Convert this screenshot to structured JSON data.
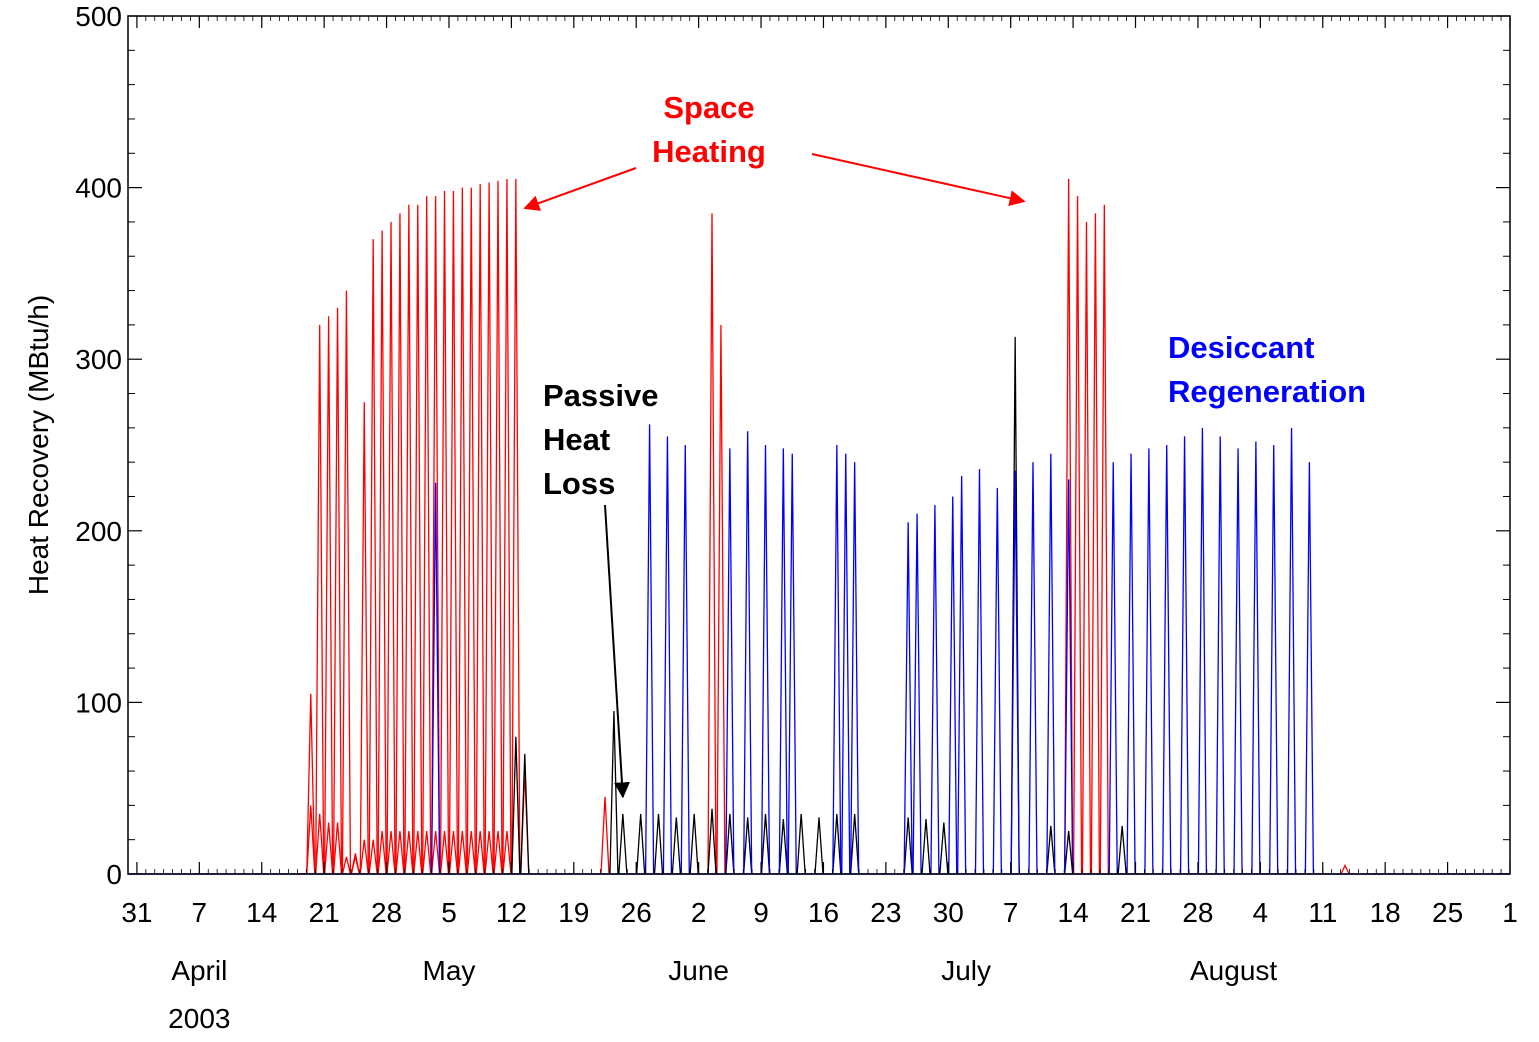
{
  "chart_data": {
    "type": "line",
    "title": "",
    "xlabel": "",
    "ylabel": "Heat Recovery (MBtu/h)",
    "ylim": [
      0,
      500
    ],
    "yticks": [
      0,
      100,
      200,
      300,
      400,
      500
    ],
    "xlim": [
      "2003-03-30",
      "2003-09-01"
    ],
    "x_tick_labels": [
      {
        "date": "2003-03-31",
        "label": "31"
      },
      {
        "date": "2003-04-07",
        "label": "7"
      },
      {
        "date": "2003-04-14",
        "label": "14"
      },
      {
        "date": "2003-04-21",
        "label": "21"
      },
      {
        "date": "2003-04-28",
        "label": "28"
      },
      {
        "date": "2003-05-05",
        "label": "5"
      },
      {
        "date": "2003-05-12",
        "label": "12"
      },
      {
        "date": "2003-05-19",
        "label": "19"
      },
      {
        "date": "2003-05-26",
        "label": "26"
      },
      {
        "date": "2003-06-02",
        "label": "2"
      },
      {
        "date": "2003-06-09",
        "label": "9"
      },
      {
        "date": "2003-06-16",
        "label": "16"
      },
      {
        "date": "2003-06-23",
        "label": "23"
      },
      {
        "date": "2003-06-30",
        "label": "30"
      },
      {
        "date": "2003-07-07",
        "label": "7"
      },
      {
        "date": "2003-07-14",
        "label": "14"
      },
      {
        "date": "2003-07-21",
        "label": "21"
      },
      {
        "date": "2003-07-28",
        "label": "28"
      },
      {
        "date": "2003-08-04",
        "label": "4"
      },
      {
        "date": "2003-08-11",
        "label": "11"
      },
      {
        "date": "2003-08-18",
        "label": "18"
      },
      {
        "date": "2003-08-25",
        "label": "25"
      },
      {
        "date": "2003-09-01",
        "label": "1"
      }
    ],
    "month_labels": [
      {
        "date": "2003-04-07",
        "label": "April"
      },
      {
        "date": "2003-05-05",
        "label": "May"
      },
      {
        "date": "2003-06-02",
        "label": "June"
      },
      {
        "date": "2003-07-02",
        "label": "July"
      },
      {
        "date": "2003-08-01",
        "label": "August"
      }
    ],
    "year_label": {
      "date": "2003-04-07",
      "label": "2003"
    },
    "grid": false,
    "series": [
      {
        "color": "#ff0000",
        "x": [
          "2003-04-18",
          "2003-04-19",
          "2003-04-19",
          "2003-04-20",
          "2003-04-20",
          "2003-04-21",
          "2003-04-21",
          "2003-04-22",
          "2003-04-22",
          "2003-04-23",
          "2003-04-23",
          "2003-04-24",
          "2003-04-24",
          "2003-04-25",
          "2003-04-25",
          "2003-04-26",
          "2003-04-26",
          "2003-04-27",
          "2003-04-27",
          "2003-04-28",
          "2003-04-28",
          "2003-04-29",
          "2003-04-29",
          "2003-04-30",
          "2003-04-30",
          "2003-05-01",
          "2003-05-01",
          "2003-05-02",
          "2003-05-02",
          "2003-05-03",
          "2003-05-03",
          "2003-05-04",
          "2003-05-04",
          "2003-05-05",
          "2003-05-05",
          "2003-05-06",
          "2003-05-06",
          "2003-05-07",
          "2003-05-07",
          "2003-05-08",
          "2003-05-08",
          "2003-05-09",
          "2003-05-09",
          "2003-05-10",
          "2003-05-10",
          "2003-05-11",
          "2003-05-11",
          "2003-05-12",
          "2003-05-13",
          "2003-05-22",
          "2003-06-03",
          "2003-06-04",
          "2003-07-13",
          "2003-07-14",
          "2003-07-15",
          "2003-07-16",
          "2003-07-17",
          "2003-08-13"
        ],
        "y": [
          0,
          105,
          40,
          320,
          35,
          325,
          30,
          330,
          30,
          340,
          10,
          12,
          10,
          275,
          20,
          370,
          20,
          375,
          25,
          380,
          25,
          385,
          25,
          390,
          25,
          390,
          25,
          395,
          25,
          395,
          25,
          398,
          25,
          398,
          25,
          400,
          25,
          400,
          25,
          402,
          25,
          403,
          25,
          404,
          25,
          405,
          25,
          405,
          60,
          45,
          385,
          320,
          405,
          395,
          380,
          385,
          390,
          5
        ]
      },
      {
        "color": "#000000",
        "x": [
          "2003-05-12",
          "2003-05-13",
          "2003-05-23",
          "2003-05-24",
          "2003-05-26",
          "2003-05-28",
          "2003-05-30",
          "2003-06-01",
          "2003-06-03",
          "2003-06-05",
          "2003-06-07",
          "2003-06-09",
          "2003-06-11",
          "2003-06-13",
          "2003-06-15",
          "2003-06-17",
          "2003-06-19",
          "2003-06-25",
          "2003-06-27",
          "2003-06-29",
          "2003-07-07",
          "2003-07-11",
          "2003-07-13",
          "2003-07-19"
        ],
        "y": [
          80,
          70,
          95,
          35,
          35,
          35,
          33,
          35,
          38,
          35,
          33,
          35,
          32,
          35,
          33,
          35,
          35,
          33,
          32,
          30,
          313,
          28,
          25,
          28
        ]
      },
      {
        "color": "#0000ff",
        "x": [
          "2003-05-03",
          "2003-05-27",
          "2003-05-29",
          "2003-05-31",
          "2003-06-05",
          "2003-06-07",
          "2003-06-09",
          "2003-06-11",
          "2003-06-12",
          "2003-06-17",
          "2003-06-18",
          "2003-06-19",
          "2003-06-25",
          "2003-06-26",
          "2003-06-28",
          "2003-06-30",
          "2003-07-01",
          "2003-07-03",
          "2003-07-05",
          "2003-07-07",
          "2003-07-09",
          "2003-07-11",
          "2003-07-13",
          "2003-07-18",
          "2003-07-20",
          "2003-07-22",
          "2003-07-24",
          "2003-07-26",
          "2003-07-28",
          "2003-07-30",
          "2003-08-01",
          "2003-08-03",
          "2003-08-05",
          "2003-08-07",
          "2003-08-09"
        ],
        "y": [
          228,
          262,
          255,
          250,
          248,
          258,
          250,
          248,
          245,
          250,
          245,
          240,
          205,
          210,
          215,
          220,
          232,
          236,
          225,
          235,
          240,
          245,
          230,
          240,
          245,
          248,
          250,
          255,
          260,
          255,
          248,
          252,
          250,
          260,
          240
        ]
      }
    ],
    "annotations": [
      {
        "text_lines": [
          "Space",
          "Heating"
        ],
        "color": "#ff0000",
        "arrow_targets": [
          {
            "x": "2003-05-13",
            "y": 388
          },
          {
            "x": "2003-07-08",
            "y": 392
          }
        ]
      },
      {
        "text_lines": [
          "Passive",
          "Heat",
          "Loss"
        ],
        "color": "#000000",
        "arrow_targets": [
          {
            "x": "2003-05-24",
            "y": 45
          }
        ]
      },
      {
        "text_lines": [
          "Desiccant",
          "Regeneration"
        ],
        "color": "#0000ff",
        "arrow_targets": []
      }
    ]
  }
}
